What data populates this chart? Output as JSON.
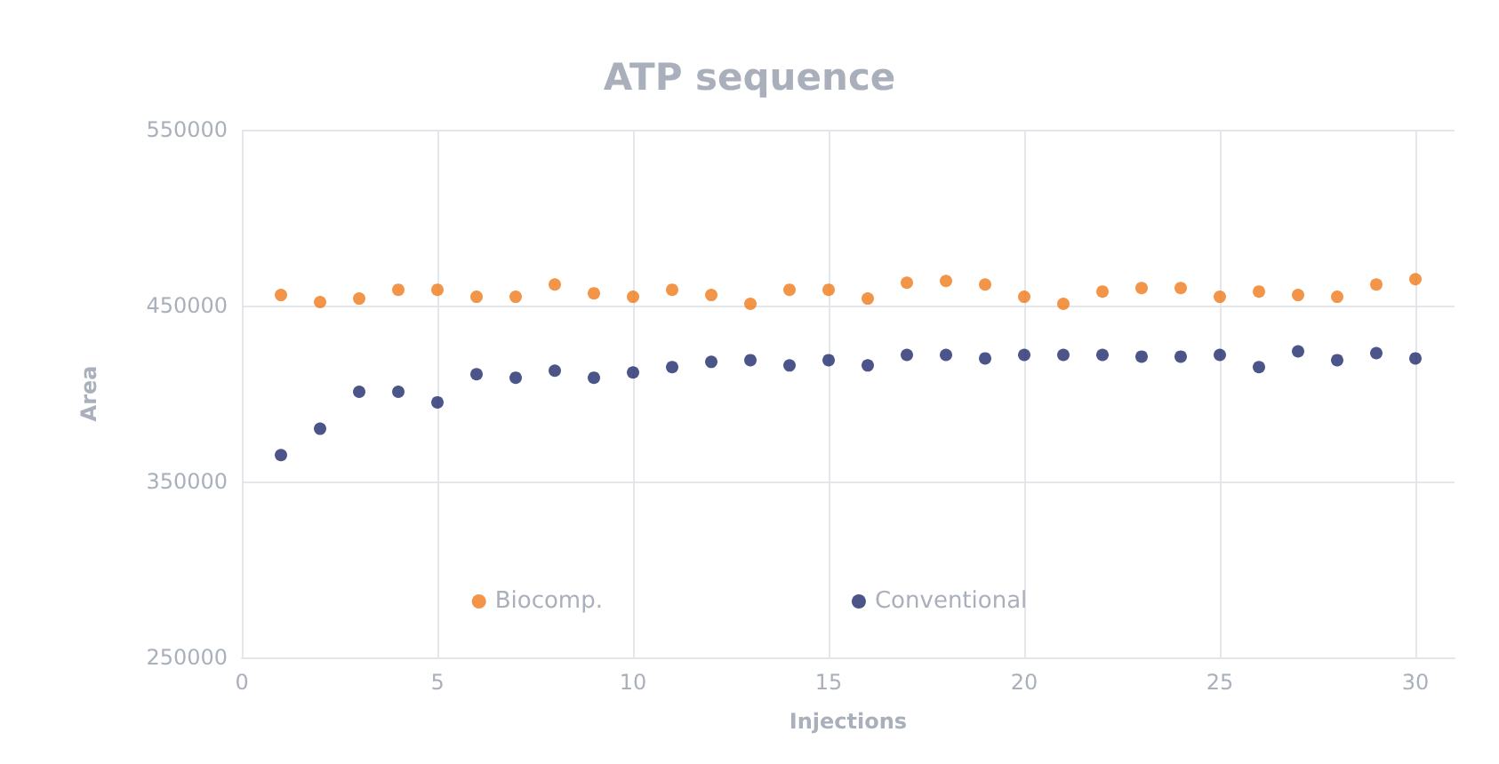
{
  "chart_data": {
    "type": "scatter",
    "title": "ATP sequence",
    "xlabel": "Injections",
    "ylabel": "Area",
    "x": [
      1,
      2,
      3,
      4,
      5,
      6,
      7,
      8,
      9,
      10,
      11,
      12,
      13,
      14,
      15,
      16,
      17,
      18,
      19,
      20,
      21,
      22,
      23,
      24,
      25,
      26,
      27,
      28,
      29,
      30
    ],
    "series": [
      {
        "name": "Biocomp.",
        "color": "#f07a1a",
        "values": [
          456000,
          452000,
          454000,
          459000,
          459000,
          455000,
          455000,
          462000,
          457000,
          455000,
          459000,
          456000,
          451000,
          459000,
          459000,
          454000,
          463000,
          464000,
          462000,
          455000,
          451000,
          458000,
          460000,
          460000,
          455000,
          458000,
          456000,
          455000,
          462000,
          465000
        ]
      },
      {
        "name": "Conventional",
        "color": "#1f2a6b",
        "values": [
          365000,
          380000,
          401000,
          401000,
          395000,
          411000,
          409000,
          413000,
          409000,
          412000,
          415000,
          418000,
          419000,
          416000,
          419000,
          416000,
          422000,
          422000,
          420000,
          422000,
          422000,
          422000,
          421000,
          421000,
          422000,
          415000,
          424000,
          419000,
          423000,
          420000
        ]
      }
    ],
    "xlim": [
      0,
      31
    ],
    "xticks": [
      0,
      5,
      10,
      15,
      20,
      25,
      30
    ],
    "ylim": [
      250000,
      550000
    ],
    "yticks": [
      250000,
      350000,
      450000,
      550000
    ],
    "grid": true,
    "legend": "bottom",
    "marker": "circle"
  }
}
